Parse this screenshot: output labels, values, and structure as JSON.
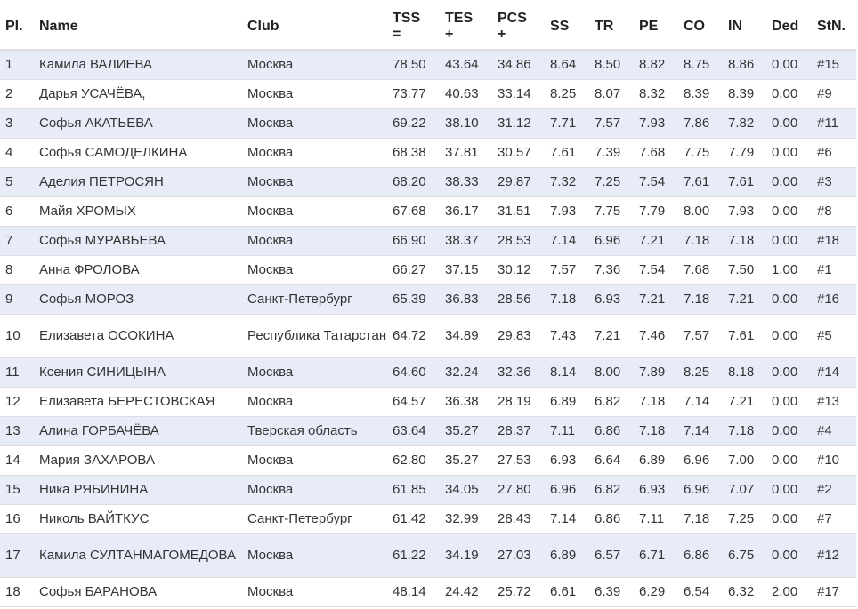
{
  "table": {
    "headers": [
      {
        "line1": "Pl.",
        "line2": ""
      },
      {
        "line1": "Name",
        "line2": ""
      },
      {
        "line1": "Club",
        "line2": ""
      },
      {
        "line1": "TSS",
        "line2": "="
      },
      {
        "line1": "TES",
        "line2": "+"
      },
      {
        "line1": "PCS",
        "line2": "+"
      },
      {
        "line1": "SS",
        "line2": ""
      },
      {
        "line1": "TR",
        "line2": ""
      },
      {
        "line1": "PE",
        "line2": ""
      },
      {
        "line1": "CO",
        "line2": ""
      },
      {
        "line1": "IN",
        "line2": ""
      },
      {
        "line1": "Ded",
        "line2": ""
      },
      {
        "line1": "StN.",
        "line2": ""
      }
    ],
    "rows": [
      [
        "1",
        "Камила ВАЛИЕВА",
        "Москва",
        "78.50",
        "43.64",
        "34.86",
        "8.64",
        "8.50",
        "8.82",
        "8.75",
        "8.86",
        "0.00",
        "#15"
      ],
      [
        "2",
        "Дарья УСАЧЁВА,",
        "Москва",
        "73.77",
        "40.63",
        "33.14",
        "8.25",
        "8.07",
        "8.32",
        "8.39",
        "8.39",
        "0.00",
        "#9"
      ],
      [
        "3",
        "Софья АКАТЬЕВА",
        "Москва",
        "69.22",
        "38.10",
        "31.12",
        "7.71",
        "7.57",
        "7.93",
        "7.86",
        "7.82",
        "0.00",
        "#11"
      ],
      [
        "4",
        "Софья САМОДЕЛКИНА",
        "Москва",
        "68.38",
        "37.81",
        "30.57",
        "7.61",
        "7.39",
        "7.68",
        "7.75",
        "7.79",
        "0.00",
        "#6"
      ],
      [
        "5",
        "Аделия ПЕТРОСЯН",
        "Москва",
        "68.20",
        "38.33",
        "29.87",
        "7.32",
        "7.25",
        "7.54",
        "7.61",
        "7.61",
        "0.00",
        "#3"
      ],
      [
        "6",
        "Майя ХРОМЫХ",
        "Москва",
        "67.68",
        "36.17",
        "31.51",
        "7.93",
        "7.75",
        "7.79",
        "8.00",
        "7.93",
        "0.00",
        "#8"
      ],
      [
        "7",
        "Софья МУРАВЬЕВА",
        "Москва",
        "66.90",
        "38.37",
        "28.53",
        "7.14",
        "6.96",
        "7.21",
        "7.18",
        "7.18",
        "0.00",
        "#18"
      ],
      [
        "8",
        "Анна ФРОЛОВА",
        "Москва",
        "66.27",
        "37.15",
        "30.12",
        "7.57",
        "7.36",
        "7.54",
        "7.68",
        "7.50",
        "1.00",
        "#1"
      ],
      [
        "9",
        "Софья МОРОЗ",
        "Санкт-Петербург",
        "65.39",
        "36.83",
        "28.56",
        "7.18",
        "6.93",
        "7.21",
        "7.18",
        "7.21",
        "0.00",
        "#16"
      ],
      [
        "10",
        "Елизавета ОСОКИНА",
        "Республика Татарстан",
        "64.72",
        "34.89",
        "29.83",
        "7.43",
        "7.21",
        "7.46",
        "7.57",
        "7.61",
        "0.00",
        "#5"
      ],
      [
        "11",
        "Ксения СИНИЦЫНА",
        "Москва",
        "64.60",
        "32.24",
        "32.36",
        "8.14",
        "8.00",
        "7.89",
        "8.25",
        "8.18",
        "0.00",
        "#14"
      ],
      [
        "12",
        "Елизавета БЕРЕСТОВСКАЯ",
        "Москва",
        "64.57",
        "36.38",
        "28.19",
        "6.89",
        "6.82",
        "7.18",
        "7.14",
        "7.21",
        "0.00",
        "#13"
      ],
      [
        "13",
        "Алина ГОРБАЧЁВА",
        "Тверская область",
        "63.64",
        "35.27",
        "28.37",
        "7.11",
        "6.86",
        "7.18",
        "7.14",
        "7.18",
        "0.00",
        "#4"
      ],
      [
        "14",
        "Мария ЗАХАРОВА",
        "Москва",
        "62.80",
        "35.27",
        "27.53",
        "6.93",
        "6.64",
        "6.89",
        "6.96",
        "7.00",
        "0.00",
        "#10"
      ],
      [
        "15",
        "Ника РЯБИНИНА",
        "Москва",
        "61.85",
        "34.05",
        "27.80",
        "6.96",
        "6.82",
        "6.93",
        "6.96",
        "7.07",
        "0.00",
        "#2"
      ],
      [
        "16",
        "Николь ВАЙТКУС",
        "Санкт-Петербург",
        "61.42",
        "32.99",
        "28.43",
        "7.14",
        "6.86",
        "7.11",
        "7.18",
        "7.25",
        "0.00",
        "#7"
      ],
      [
        "17",
        "Камила СУЛТАНМАГОМЕДОВА",
        "Москва",
        "61.22",
        "34.19",
        "27.03",
        "6.89",
        "6.57",
        "6.71",
        "6.86",
        "6.75",
        "0.00",
        "#12"
      ],
      [
        "18",
        "Софья БАРАНОВА",
        "Москва",
        "48.14",
        "24.42",
        "25.72",
        "6.61",
        "6.39",
        "6.29",
        "6.54",
        "6.32",
        "2.00",
        "#17"
      ]
    ]
  },
  "colors": {
    "row_odd": "#e8ecf8",
    "row_even": "#ffffff",
    "border": "#dddddd",
    "text": "#333333"
  }
}
